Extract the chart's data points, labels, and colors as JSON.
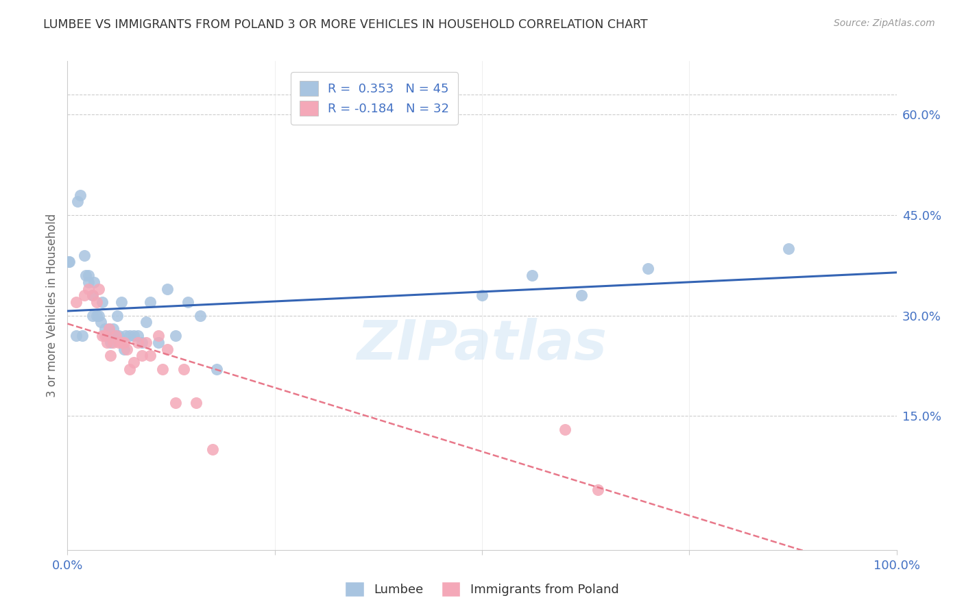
{
  "title": "LUMBEE VS IMMIGRANTS FROM POLAND 3 OR MORE VEHICLES IN HOUSEHOLD CORRELATION CHART",
  "source": "Source: ZipAtlas.com",
  "ylabel": "3 or more Vehicles in Household",
  "ytick_labels": [
    "15.0%",
    "30.0%",
    "45.0%",
    "60.0%"
  ],
  "ytick_values": [
    0.15,
    0.3,
    0.45,
    0.6
  ],
  "xlim": [
    0.0,
    1.0
  ],
  "ylim": [
    -0.05,
    0.68
  ],
  "lumbee_R": 0.353,
  "lumbee_N": 45,
  "poland_R": -0.184,
  "poland_N": 32,
  "lumbee_color": "#a8c4e0",
  "poland_color": "#f4a8b8",
  "lumbee_line_color": "#3464b4",
  "poland_line_color": "#e8788a",
  "legend_label_lumbee": "Lumbee",
  "legend_label_poland": "Immigrants from Poland",
  "watermark": "ZIPatlas",
  "lumbee_x": [
    0.001,
    0.002,
    0.01,
    0.012,
    0.015,
    0.018,
    0.02,
    0.022,
    0.025,
    0.025,
    0.03,
    0.03,
    0.032,
    0.035,
    0.038,
    0.04,
    0.042,
    0.045,
    0.048,
    0.05,
    0.052,
    0.055,
    0.058,
    0.06,
    0.062,
    0.065,
    0.068,
    0.07,
    0.075,
    0.08,
    0.085,
    0.09,
    0.095,
    0.1,
    0.11,
    0.12,
    0.13,
    0.145,
    0.16,
    0.18,
    0.5,
    0.56,
    0.62,
    0.7,
    0.87
  ],
  "lumbee_y": [
    0.38,
    0.38,
    0.27,
    0.47,
    0.48,
    0.27,
    0.39,
    0.36,
    0.36,
    0.35,
    0.33,
    0.3,
    0.35,
    0.3,
    0.3,
    0.29,
    0.32,
    0.28,
    0.27,
    0.28,
    0.26,
    0.28,
    0.27,
    0.3,
    0.27,
    0.32,
    0.25,
    0.27,
    0.27,
    0.27,
    0.27,
    0.26,
    0.29,
    0.32,
    0.26,
    0.34,
    0.27,
    0.32,
    0.3,
    0.22,
    0.33,
    0.36,
    0.33,
    0.37,
    0.4
  ],
  "poland_x": [
    0.01,
    0.02,
    0.025,
    0.03,
    0.035,
    0.038,
    0.042,
    0.045,
    0.048,
    0.05,
    0.052,
    0.055,
    0.058,
    0.062,
    0.065,
    0.068,
    0.072,
    0.075,
    0.08,
    0.085,
    0.09,
    0.095,
    0.1,
    0.11,
    0.115,
    0.12,
    0.13,
    0.14,
    0.155,
    0.175,
    0.6,
    0.64
  ],
  "poland_y": [
    0.32,
    0.33,
    0.34,
    0.33,
    0.32,
    0.34,
    0.27,
    0.27,
    0.26,
    0.28,
    0.24,
    0.26,
    0.27,
    0.26,
    0.26,
    0.26,
    0.25,
    0.22,
    0.23,
    0.26,
    0.24,
    0.26,
    0.24,
    0.27,
    0.22,
    0.25,
    0.17,
    0.22,
    0.17,
    0.1,
    0.13,
    0.04
  ]
}
